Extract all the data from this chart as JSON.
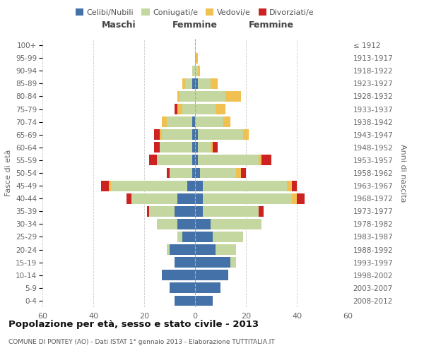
{
  "age_groups": [
    "0-4",
    "5-9",
    "10-14",
    "15-19",
    "20-24",
    "25-29",
    "30-34",
    "35-39",
    "40-44",
    "45-49",
    "50-54",
    "55-59",
    "60-64",
    "65-69",
    "70-74",
    "75-79",
    "80-84",
    "85-89",
    "90-94",
    "95-99",
    "100+"
  ],
  "birth_years": [
    "2008-2012",
    "2003-2007",
    "1998-2002",
    "1993-1997",
    "1988-1992",
    "1983-1987",
    "1978-1982",
    "1973-1977",
    "1968-1972",
    "1963-1967",
    "1958-1962",
    "1953-1957",
    "1948-1952",
    "1943-1947",
    "1938-1942",
    "1933-1937",
    "1928-1932",
    "1923-1927",
    "1918-1922",
    "1913-1917",
    "≤ 1912"
  ],
  "male": {
    "celibi": [
      8,
      10,
      13,
      8,
      10,
      5,
      7,
      8,
      7,
      3,
      1,
      1,
      1,
      1,
      1,
      0,
      0,
      1,
      0,
      0,
      0
    ],
    "coniugati": [
      0,
      0,
      0,
      0,
      1,
      2,
      8,
      10,
      18,
      30,
      9,
      14,
      13,
      12,
      10,
      5,
      6,
      3,
      1,
      0,
      0
    ],
    "vedovi": [
      0,
      0,
      0,
      0,
      0,
      0,
      0,
      0,
      0,
      1,
      0,
      0,
      0,
      1,
      2,
      2,
      1,
      1,
      0,
      0,
      0
    ],
    "divorziati": [
      0,
      0,
      0,
      0,
      0,
      0,
      0,
      1,
      2,
      3,
      1,
      3,
      2,
      2,
      0,
      1,
      0,
      0,
      0,
      0,
      0
    ]
  },
  "female": {
    "nubili": [
      7,
      10,
      13,
      14,
      8,
      7,
      6,
      3,
      3,
      3,
      2,
      1,
      1,
      1,
      0,
      0,
      0,
      1,
      0,
      0,
      0
    ],
    "coniugate": [
      0,
      0,
      0,
      2,
      8,
      12,
      20,
      22,
      35,
      33,
      14,
      24,
      5,
      18,
      11,
      8,
      12,
      5,
      1,
      0,
      0
    ],
    "vedove": [
      0,
      0,
      0,
      0,
      0,
      0,
      0,
      0,
      2,
      2,
      2,
      1,
      1,
      2,
      3,
      4,
      6,
      3,
      1,
      1,
      0
    ],
    "divorziate": [
      0,
      0,
      0,
      0,
      0,
      0,
      0,
      2,
      3,
      2,
      2,
      4,
      2,
      0,
      0,
      0,
      0,
      0,
      0,
      0,
      0
    ]
  },
  "colors": {
    "celibi": "#4472a8",
    "coniugati": "#c5d7a0",
    "vedovi": "#f0c050",
    "divorziati": "#cc2222"
  },
  "xlim": 60,
  "title": "Popolazione per età, sesso e stato civile - 2013",
  "subtitle": "COMUNE DI PONTEY (AO) - Dati ISTAT 1° gennaio 2013 - Elaborazione TUTTITALIA.IT",
  "ylabel_left": "Fasce di età",
  "ylabel_right": "Anni di nascita",
  "xlabel_maschi": "Maschi",
  "xlabel_femmine": "Femmine"
}
